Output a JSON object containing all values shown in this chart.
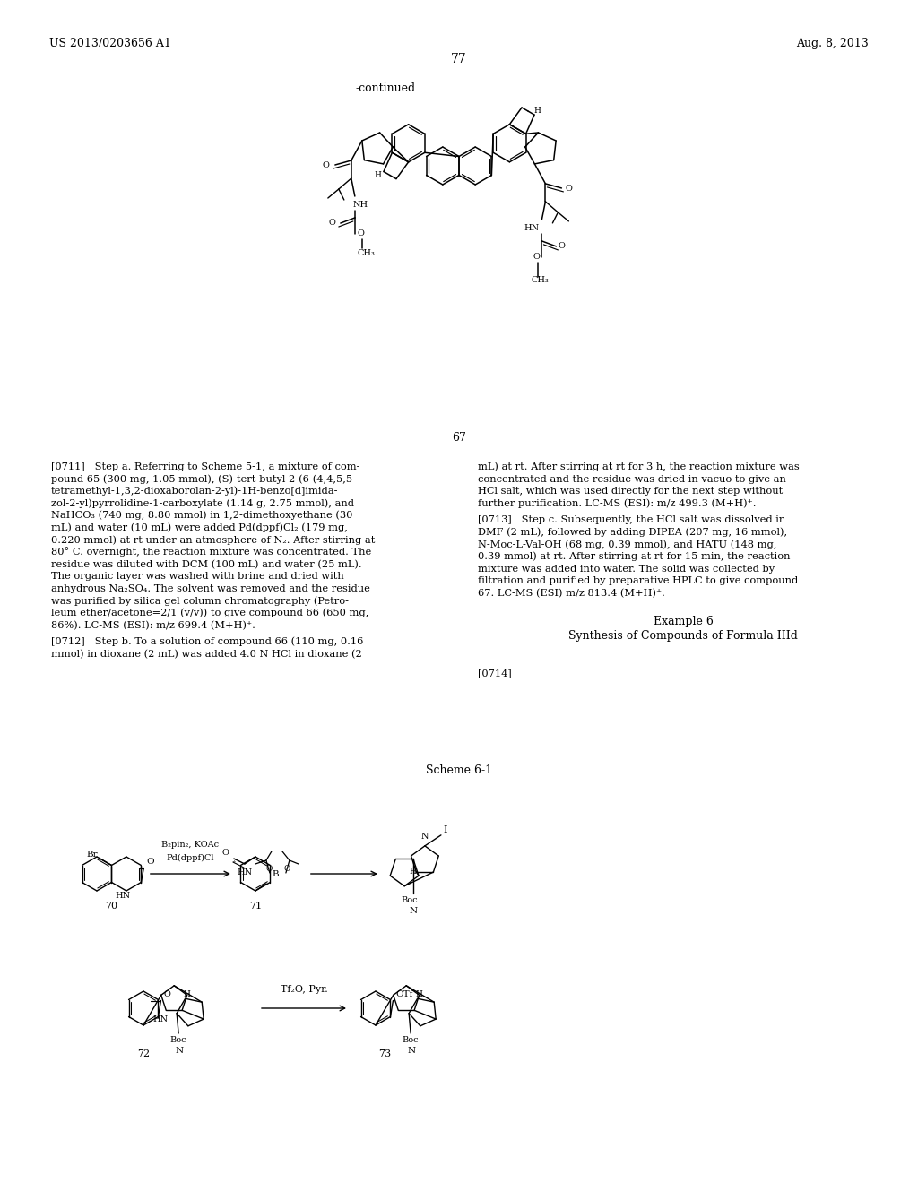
{
  "page_header_left": "US 2013/0203656 A1",
  "page_header_right": "Aug. 8, 2013",
  "page_number": "77",
  "continued_label": "-continued",
  "compound_67": "67",
  "scheme_label": "Scheme 6-1",
  "para_0711_lines": [
    "[0711]   Step a. Referring to Scheme 5-1, a mixture of com-",
    "pound 65 (300 mg, 1.05 mmol), (S)-tert-butyl 2-(6-(4,4,5,5-",
    "tetramethyl-1,3,2-dioxaborolan-2-yl)-1H-benzo[d]imida-",
    "zol-2-yl)pyrrolidine-1-carboxylate (1.14 g, 2.75 mmol), and",
    "NaHCO₃ (740 mg, 8.80 mmol) in 1,2-dimethoxyethane (30",
    "mL) and water (10 mL) were added Pd(dppf)Cl₂ (179 mg,",
    "0.220 mmol) at rt under an atmosphere of N₂. After stirring at",
    "80° C. overnight, the reaction mixture was concentrated. The",
    "residue was diluted with DCM (100 mL) and water (25 mL).",
    "The organic layer was washed with brine and dried with",
    "anhydrous Na₂SO₄. The solvent was removed and the residue",
    "was purified by silica gel column chromatography (Petro-",
    "leum ether/acetone=2/1 (v/v)) to give compound 66 (650 mg,",
    "86%). LC-MS (ESI): m/z 699.4 (M+H)⁺."
  ],
  "para_0712_lines": [
    "[0712]   Step b. To a solution of compound 66 (110 mg, 0.16",
    "mmol) in dioxane (2 mL) was added 4.0 N HCl in dioxane (2"
  ],
  "para_0712r_lines": [
    "mL) at rt. After stirring at rt for 3 h, the reaction mixture was",
    "concentrated and the residue was dried in vacuo to give an",
    "HCl salt, which was used directly for the next step without",
    "further purification. LC-MS (ESI): m/z 499.3 (M+H)⁺."
  ],
  "para_0713_lines": [
    "[0713]   Step c. Subsequently, the HCl salt was dissolved in",
    "DMF (2 mL), followed by adding DIPEA (207 mg, 16 mmol),",
    "N-Moc-L-Val-OH (68 mg, 0.39 mmol), and HATU (148 mg,",
    "0.39 mmol) at rt. After stirring at rt for 15 min, the reaction",
    "mixture was added into water. The solid was collected by",
    "filtration and purified by preparative HPLC to give compound",
    "67. LC-MS (ESI) m/z 813.4 (M+H)⁺."
  ],
  "example6_header": "Example 6",
  "example6_sub": "Synthesis of Compounds of Formula IIId",
  "para_0714": "[0714]",
  "bg": "#ffffff",
  "fg": "#000000"
}
